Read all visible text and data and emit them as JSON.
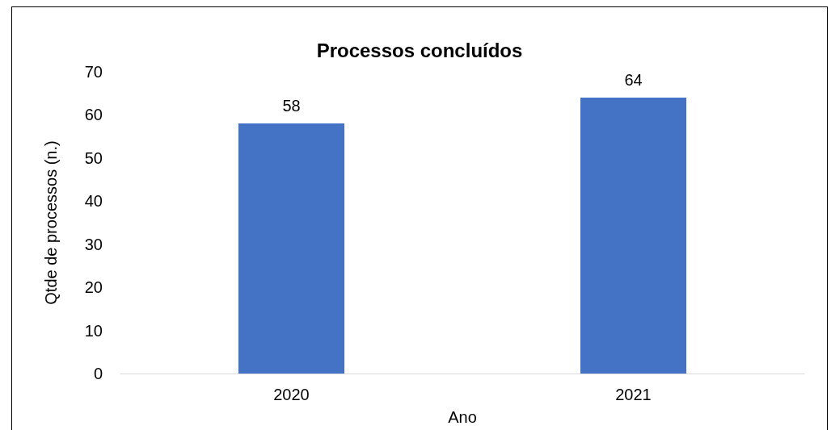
{
  "chart_data": {
    "type": "bar",
    "title": "Processos concluídos",
    "xlabel": "Ano",
    "ylabel": "Qtde de processos (n.)",
    "categories": [
      "2020",
      "2021"
    ],
    "values": [
      58,
      64
    ],
    "color": "#4472c4",
    "ylim": [
      0,
      70
    ],
    "yticks": [
      0,
      10,
      20,
      30,
      40,
      50,
      60,
      70
    ],
    "grid": false,
    "data_labels": true
  }
}
